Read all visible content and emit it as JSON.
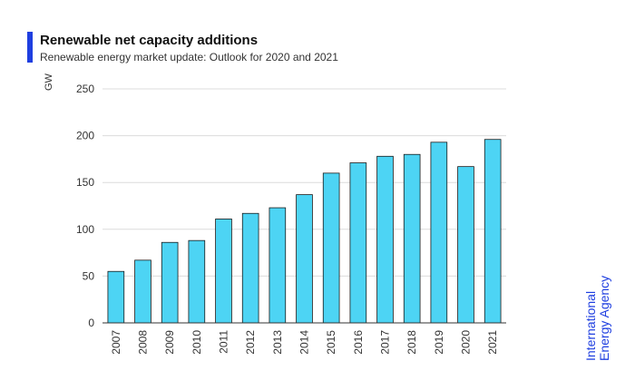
{
  "header": {
    "title": "Renewable net capacity additions",
    "subtitle": "Renewable energy market update: Outlook for 2020 and 2021",
    "accent_color": "#1f3fe0"
  },
  "branding": {
    "org_line1": "International",
    "org_line2": "Energy Agency"
  },
  "chart_data": {
    "type": "bar",
    "title": "Renewable net capacity additions",
    "xlabel": "",
    "ylabel": "GW",
    "ylim": [
      0,
      250
    ],
    "yticks": [
      0,
      50,
      100,
      150,
      200,
      250
    ],
    "grid": true,
    "bar_color": "#4dd4f4",
    "bar_edge_color": "#1a1a1a",
    "categories": [
      "2007",
      "2008",
      "2009",
      "2010",
      "2011",
      "2012",
      "2013",
      "2014",
      "2015",
      "2016",
      "2017",
      "2018",
      "2019",
      "2020",
      "2021"
    ],
    "values": [
      55,
      67,
      86,
      88,
      111,
      117,
      123,
      137,
      160,
      171,
      178,
      180,
      193,
      167,
      196
    ]
  }
}
